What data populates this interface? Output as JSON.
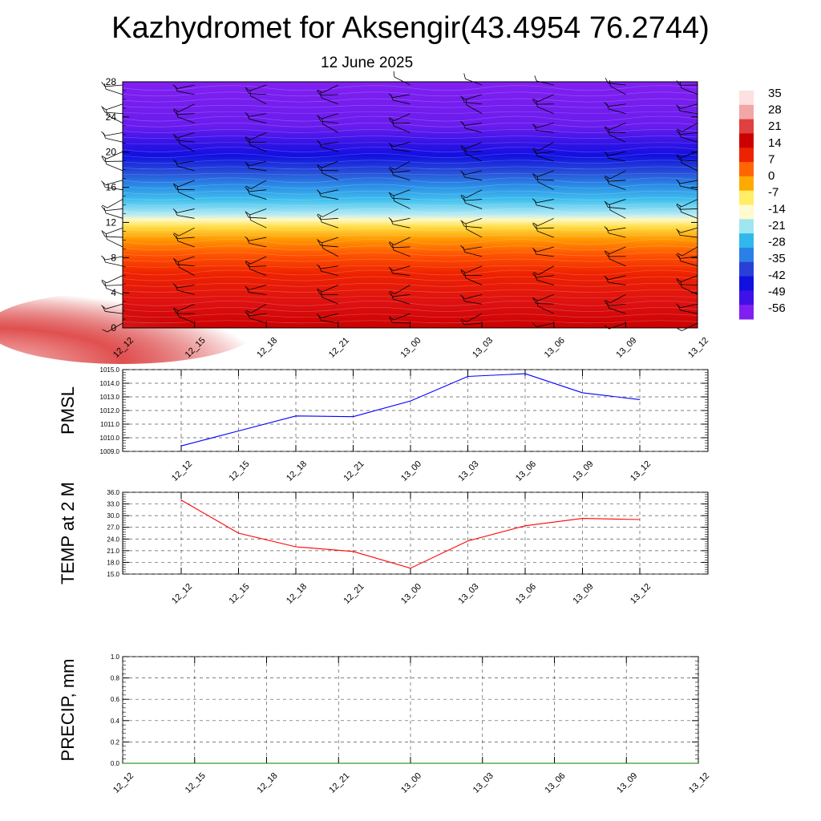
{
  "title": "Kazhydromet for Aksengir(43.4954 76.2744)",
  "subtitle": "12 June 2025",
  "colors": {
    "pmsl_line": "#0000ff",
    "temp_line": "#ff0000",
    "precip_line": "#008000",
    "colorbar": [
      "#fde0e0",
      "#f3a6a6",
      "#e04040",
      "#cc0000",
      "#ee2200",
      "#ff6600",
      "#ffaa00",
      "#ffee66",
      "#fffad0",
      "#a0e6f0",
      "#30b8ec",
      "#2a80e6",
      "#2840d8",
      "#1010e0",
      "#4010e8",
      "#8020f0"
    ]
  },
  "chart_data": [
    {
      "type": "heatmap",
      "name_hint": "cross-section",
      "xlabel": "",
      "ylabel": "",
      "x_ticks": [
        "12_12",
        "12_15",
        "12_18",
        "12_21",
        "13_00",
        "13_03",
        "13_06",
        "13_09",
        "13_12"
      ],
      "y_ticks": [
        "0",
        "4",
        "8",
        "12",
        "16",
        "20",
        "24",
        "28"
      ],
      "ylim": [
        0,
        28
      ],
      "colorbar_labels": [
        "35",
        "28",
        "21",
        "14",
        "7",
        "0",
        "-7",
        "-14",
        "-21",
        "-28",
        "-35",
        "-42",
        "-49",
        "-56"
      ],
      "colorbar_range": [
        -56,
        35
      ],
      "legend_position": "right",
      "overlay": "wind barbs"
    },
    {
      "type": "line",
      "ylabel": "PMSL",
      "x_ticks": [
        "12_12",
        "12_15",
        "12_18",
        "12_21",
        "13_00",
        "13_03",
        "13_06",
        "13_09",
        "13_12"
      ],
      "y_ticks": [
        "1015.0",
        "1014.0",
        "1013.0",
        "1012.0",
        "1011.0",
        "1010.0",
        "1009.0"
      ],
      "ylim": [
        1009,
        1015
      ],
      "grid": true,
      "series": [
        {
          "values": [
            1009.4,
            1010.5,
            1011.6,
            1011.55,
            1012.7,
            1014.5,
            1014.7,
            1013.3,
            1012.8
          ]
        }
      ]
    },
    {
      "type": "line",
      "ylabel": "TEMP at 2 M",
      "x_ticks": [
        "12_12",
        "12_15",
        "12_18",
        "12_21",
        "13_00",
        "13_03",
        "13_06",
        "13_09",
        "13_12"
      ],
      "y_ticks": [
        "36.0",
        "33.0",
        "30.0",
        "27.0",
        "24.0",
        "21.0",
        "18.0",
        "15.0"
      ],
      "ylim": [
        15,
        36
      ],
      "grid": true,
      "series": [
        {
          "values": [
            34.0,
            25.5,
            22.0,
            20.8,
            16.5,
            23.5,
            27.4,
            29.3,
            29.0
          ]
        }
      ]
    },
    {
      "type": "line",
      "ylabel": "PRECIP, mm",
      "x_ticks": [
        "12_12",
        "12_15",
        "12_18",
        "12_21",
        "13_00",
        "13_03",
        "13_06",
        "13_09",
        "13_12"
      ],
      "y_ticks": [
        "1.0",
        "0.8",
        "0.6",
        "0.4",
        "0.2",
        "0.0"
      ],
      "ylim": [
        0,
        1
      ],
      "grid": true,
      "series": [
        {
          "values": [
            0,
            0,
            0,
            0,
            0,
            0,
            0,
            0,
            0
          ]
        }
      ]
    }
  ]
}
